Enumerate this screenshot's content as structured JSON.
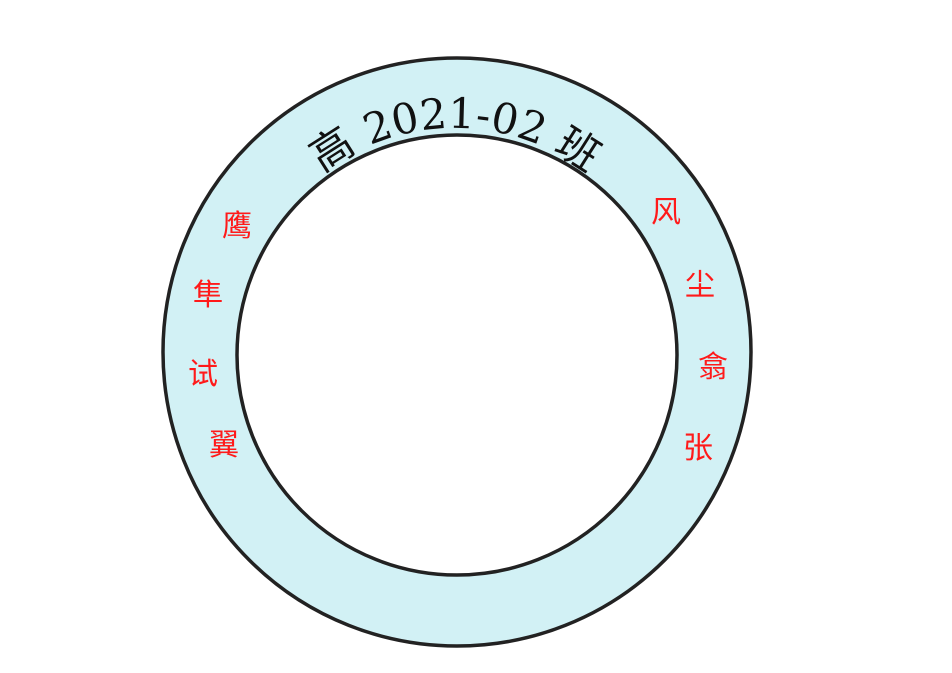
{
  "badge": {
    "title": "高 2021-02 班",
    "motto_left": [
      "鹰",
      "隼",
      "试",
      "翼"
    ],
    "motto_right": [
      "风",
      "尘",
      "翕",
      "张"
    ]
  },
  "colors": {
    "ring_fill": "#d2f1f5",
    "ring_stroke": "#222222",
    "title_text": "#111111",
    "motto_text": "#ff1a1a",
    "inner_fill": "#ffffff"
  }
}
